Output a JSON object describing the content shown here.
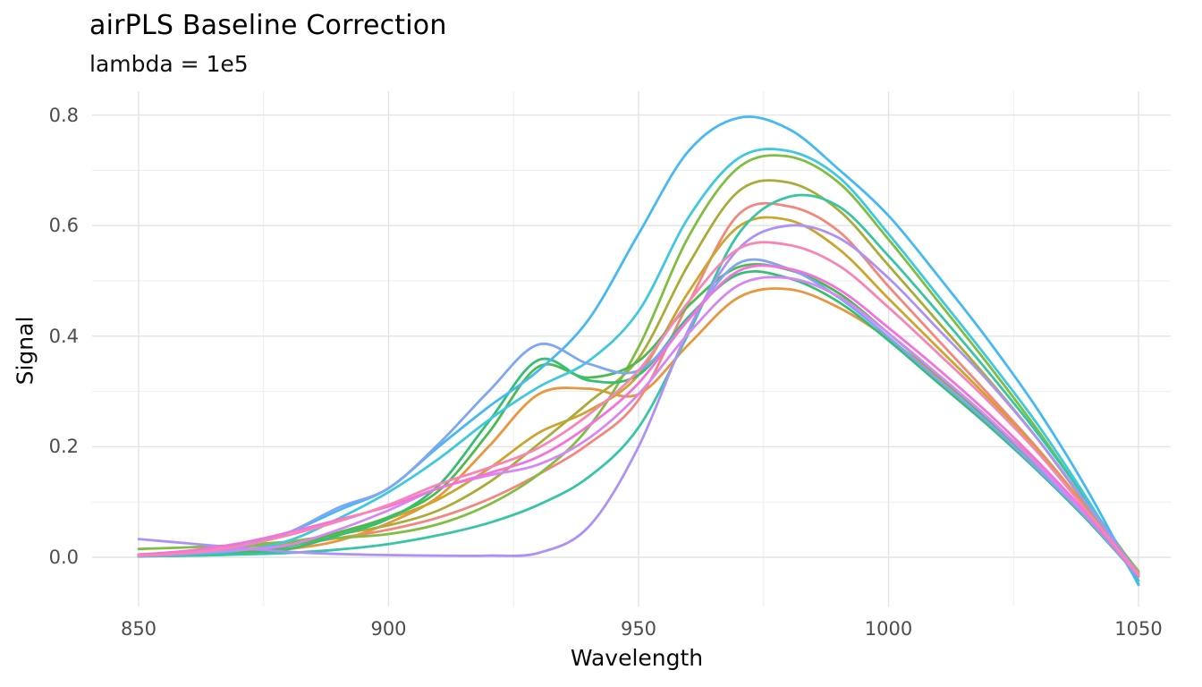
{
  "figure": {
    "title": "airPLS Baseline Correction",
    "subtitle": "lambda = 1e5",
    "background": "#FFFFFF"
  },
  "chart_data": {
    "type": "line",
    "title": "airPLS Baseline Correction",
    "subtitle": "lambda = 1e5",
    "xlabel": "Wavelength",
    "ylabel": "Signal",
    "legend": "none",
    "grid": true,
    "xlim": [
      850,
      1050
    ],
    "ylim": [
      -0.09,
      0.84
    ],
    "x_major_ticks": [
      850,
      900,
      950,
      1000,
      1050
    ],
    "x_minor_ticks": [
      875,
      925,
      975,
      1025
    ],
    "y_major_ticks": [
      0.0,
      0.2,
      0.4,
      0.6,
      0.8
    ],
    "y_tick_labels": [
      "0.0",
      "0.2",
      "0.4",
      "0.6",
      "0.8"
    ],
    "y_minor_ticks": [
      0.1,
      0.3,
      0.5,
      0.7
    ],
    "x": [
      850,
      860,
      870,
      880,
      890,
      900,
      910,
      920,
      930,
      940,
      950,
      960,
      970,
      980,
      990,
      1000,
      1010,
      1020,
      1030,
      1040,
      1050
    ],
    "series": [
      {
        "name": "salmon",
        "color": "#F4867C",
        "values": [
          0.003,
          0.005,
          0.012,
          0.022,
          0.035,
          0.05,
          0.072,
          0.105,
          0.15,
          0.205,
          0.285,
          0.46,
          0.62,
          0.635,
          0.59,
          0.49,
          0.392,
          0.295,
          0.195,
          0.085,
          -0.03
        ]
      },
      {
        "name": "orange",
        "color": "#E9973F",
        "values": [
          0.002,
          0.004,
          0.008,
          0.015,
          0.03,
          0.062,
          0.11,
          0.2,
          0.295,
          0.305,
          0.295,
          0.385,
          0.47,
          0.485,
          0.452,
          0.395,
          0.325,
          0.25,
          0.168,
          0.072,
          -0.03
        ]
      },
      {
        "name": "goldenrod",
        "color": "#CBA52E",
        "values": [
          0.002,
          0.005,
          0.012,
          0.025,
          0.045,
          0.07,
          0.105,
          0.16,
          0.225,
          0.265,
          0.33,
          0.48,
          0.598,
          0.61,
          0.558,
          0.468,
          0.378,
          0.288,
          0.192,
          0.082,
          -0.028
        ]
      },
      {
        "name": "olive",
        "color": "#A9AC38",
        "values": [
          0.005,
          0.01,
          0.018,
          0.028,
          0.042,
          0.058,
          0.085,
          0.135,
          0.205,
          0.28,
          0.36,
          0.53,
          0.662,
          0.678,
          0.628,
          0.528,
          0.425,
          0.322,
          0.212,
          0.09,
          -0.025
        ]
      },
      {
        "name": "yellow-green",
        "color": "#7FBE41",
        "values": [
          0.015,
          0.018,
          0.022,
          0.028,
          0.035,
          0.042,
          0.06,
          0.095,
          0.15,
          0.235,
          0.38,
          0.58,
          0.705,
          0.725,
          0.678,
          0.575,
          0.462,
          0.348,
          0.228,
          0.098,
          -0.028
        ]
      },
      {
        "name": "green",
        "color": "#4CBB4F",
        "values": [
          0.002,
          0.004,
          0.008,
          0.02,
          0.045,
          0.073,
          0.12,
          0.225,
          0.345,
          0.325,
          0.355,
          0.455,
          0.525,
          0.52,
          0.478,
          0.405,
          0.328,
          0.248,
          0.162,
          0.07,
          -0.032
        ]
      },
      {
        "name": "emerald",
        "color": "#36BE74",
        "values": [
          0.002,
          0.003,
          0.006,
          0.015,
          0.04,
          0.07,
          0.13,
          0.245,
          0.357,
          0.32,
          0.33,
          0.435,
          0.512,
          0.505,
          0.462,
          0.392,
          0.315,
          0.238,
          0.155,
          0.065,
          -0.035
        ]
      },
      {
        "name": "teal",
        "color": "#38C5A6",
        "values": [
          0.002,
          0.003,
          0.005,
          0.008,
          0.014,
          0.024,
          0.04,
          0.062,
          0.095,
          0.145,
          0.235,
          0.405,
          0.585,
          0.652,
          0.635,
          0.545,
          0.442,
          0.335,
          0.222,
          0.098,
          -0.042
        ]
      },
      {
        "name": "cyan",
        "color": "#3FC8DE",
        "values": [
          0.003,
          0.006,
          0.012,
          0.03,
          0.07,
          0.118,
          0.178,
          0.248,
          0.308,
          0.355,
          0.445,
          0.615,
          0.722,
          0.735,
          0.688,
          0.585,
          0.472,
          0.358,
          0.238,
          0.102,
          -0.048
        ]
      },
      {
        "name": "sky-blue",
        "color": "#47B9F2",
        "values": [
          0.003,
          0.008,
          0.02,
          0.045,
          0.085,
          0.125,
          0.2,
          0.272,
          0.338,
          0.43,
          0.585,
          0.735,
          0.795,
          0.775,
          0.702,
          0.618,
          0.508,
          0.392,
          0.265,
          0.118,
          -0.05
        ]
      },
      {
        "name": "cornflower",
        "color": "#7FA6F4",
        "values": [
          0.002,
          0.006,
          0.018,
          0.045,
          0.09,
          0.125,
          0.205,
          0.3,
          0.385,
          0.35,
          0.338,
          0.43,
          0.532,
          0.522,
          0.47,
          0.398,
          0.32,
          0.243,
          0.158,
          0.068,
          -0.035
        ]
      },
      {
        "name": "lavender",
        "color": "#AC92F6",
        "values": [
          0.033,
          0.025,
          0.017,
          0.01,
          0.006,
          0.004,
          0.003,
          0.003,
          0.008,
          0.055,
          0.2,
          0.412,
          0.558,
          0.6,
          0.578,
          0.505,
          0.412,
          0.318,
          0.212,
          0.092,
          -0.03
        ]
      },
      {
        "name": "orchid",
        "color": "#D687F3",
        "values": [
          0.005,
          0.008,
          0.013,
          0.022,
          0.05,
          0.085,
          0.125,
          0.148,
          0.168,
          0.215,
          0.295,
          0.405,
          0.492,
          0.505,
          0.472,
          0.405,
          0.33,
          0.252,
          0.165,
          0.072,
          -0.03
        ]
      },
      {
        "name": "magenta",
        "color": "#F373DB",
        "values": [
          0.005,
          0.012,
          0.025,
          0.045,
          0.068,
          0.092,
          0.125,
          0.152,
          0.182,
          0.238,
          0.315,
          0.43,
          0.518,
          0.522,
          0.485,
          0.415,
          0.34,
          0.26,
          0.172,
          0.075,
          -0.035
        ]
      },
      {
        "name": "pink",
        "color": "#F785B5",
        "values": [
          0.003,
          0.008,
          0.02,
          0.04,
          0.065,
          0.095,
          0.132,
          0.162,
          0.198,
          0.258,
          0.338,
          0.462,
          0.558,
          0.565,
          0.528,
          0.452,
          0.368,
          0.282,
          0.188,
          0.08,
          -0.032
        ]
      }
    ],
    "colors": {
      "grid_major": "#E3E3E3",
      "grid_minor": "#EFEFEF",
      "tick_label": "#4D4D4D",
      "text": "#000000"
    }
  }
}
